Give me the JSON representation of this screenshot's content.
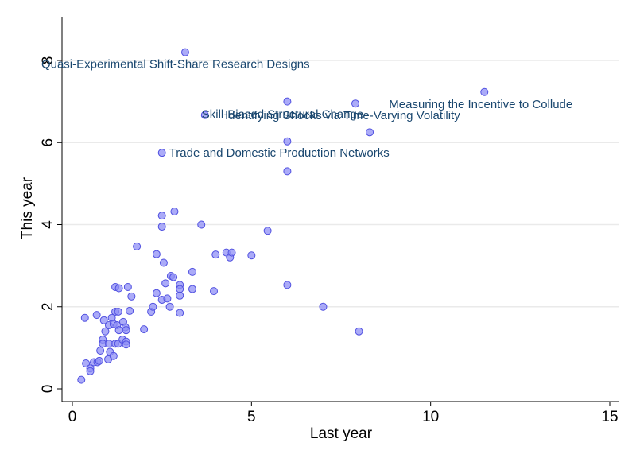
{
  "chart_data": {
    "type": "scatter",
    "xlabel": "Last year",
    "ylabel": "This year",
    "xlim": [
      0,
      15
    ],
    "ylim": [
      0,
      9
    ],
    "xticks": [
      0,
      5,
      10,
      15
    ],
    "yticks": [
      0,
      2,
      4,
      6,
      8
    ],
    "grid": true,
    "colors": {
      "point_fill": "#8f8ff5",
      "point_edge": "#5050e0",
      "annotation": "#1a476f"
    },
    "points": [
      {
        "x": 0.25,
        "y": 0.22
      },
      {
        "x": 0.35,
        "y": 1.73
      },
      {
        "x": 0.38,
        "y": 0.62
      },
      {
        "x": 0.5,
        "y": 0.5
      },
      {
        "x": 0.5,
        "y": 0.43
      },
      {
        "x": 0.6,
        "y": 0.65
      },
      {
        "x": 0.68,
        "y": 1.8
      },
      {
        "x": 0.7,
        "y": 0.65
      },
      {
        "x": 0.75,
        "y": 0.68
      },
      {
        "x": 0.78,
        "y": 0.93
      },
      {
        "x": 0.85,
        "y": 1.2
      },
      {
        "x": 0.85,
        "y": 1.1
      },
      {
        "x": 0.88,
        "y": 1.67
      },
      {
        "x": 0.92,
        "y": 1.4
      },
      {
        "x": 1.0,
        "y": 0.72
      },
      {
        "x": 1.02,
        "y": 1.1
      },
      {
        "x": 1.02,
        "y": 1.55
      },
      {
        "x": 1.05,
        "y": 0.9
      },
      {
        "x": 1.1,
        "y": 1.73
      },
      {
        "x": 1.15,
        "y": 1.58
      },
      {
        "x": 1.15,
        "y": 0.8
      },
      {
        "x": 1.2,
        "y": 1.1
      },
      {
        "x": 1.2,
        "y": 1.88
      },
      {
        "x": 1.2,
        "y": 2.48
      },
      {
        "x": 1.25,
        "y": 1.55
      },
      {
        "x": 1.28,
        "y": 1.88
      },
      {
        "x": 1.28,
        "y": 1.1
      },
      {
        "x": 1.3,
        "y": 2.45
      },
      {
        "x": 1.3,
        "y": 1.43
      },
      {
        "x": 1.4,
        "y": 1.2
      },
      {
        "x": 1.42,
        "y": 1.63
      },
      {
        "x": 1.48,
        "y": 1.5
      },
      {
        "x": 1.5,
        "y": 1.43
      },
      {
        "x": 1.5,
        "y": 1.15
      },
      {
        "x": 1.5,
        "y": 1.08
      },
      {
        "x": 1.55,
        "y": 2.48
      },
      {
        "x": 1.6,
        "y": 1.9
      },
      {
        "x": 1.65,
        "y": 2.25
      },
      {
        "x": 1.8,
        "y": 3.47
      },
      {
        "x": 2.0,
        "y": 1.45
      },
      {
        "x": 2.2,
        "y": 1.88
      },
      {
        "x": 2.25,
        "y": 2.0
      },
      {
        "x": 2.35,
        "y": 3.28
      },
      {
        "x": 2.35,
        "y": 2.33
      },
      {
        "x": 2.5,
        "y": 4.22
      },
      {
        "x": 2.5,
        "y": 3.95
      },
      {
        "x": 2.5,
        "y": 2.17
      },
      {
        "x": 2.55,
        "y": 3.07
      },
      {
        "x": 2.6,
        "y": 2.57
      },
      {
        "x": 2.65,
        "y": 2.2
      },
      {
        "x": 2.72,
        "y": 2.0
      },
      {
        "x": 2.75,
        "y": 2.75
      },
      {
        "x": 2.82,
        "y": 2.72
      },
      {
        "x": 2.85,
        "y": 4.32
      },
      {
        "x": 3.0,
        "y": 2.53
      },
      {
        "x": 3.0,
        "y": 2.43
      },
      {
        "x": 3.0,
        "y": 2.27
      },
      {
        "x": 3.0,
        "y": 1.85
      },
      {
        "x": 3.35,
        "y": 2.43
      },
      {
        "x": 3.35,
        "y": 2.85
      },
      {
        "x": 3.6,
        "y": 4.0
      },
      {
        "x": 3.95,
        "y": 2.38
      },
      {
        "x": 4.0,
        "y": 3.27
      },
      {
        "x": 4.3,
        "y": 3.32
      },
      {
        "x": 4.4,
        "y": 3.2
      },
      {
        "x": 4.45,
        "y": 3.32
      },
      {
        "x": 5.0,
        "y": 3.25
      },
      {
        "x": 5.45,
        "y": 3.85
      },
      {
        "x": 6.0,
        "y": 5.3
      },
      {
        "x": 6.0,
        "y": 6.03
      },
      {
        "x": 6.0,
        "y": 7.0
      },
      {
        "x": 6.0,
        "y": 2.53
      },
      {
        "x": 7.0,
        "y": 2.0
      },
      {
        "x": 8.0,
        "y": 1.4
      },
      {
        "x": 7.9,
        "y": 6.95
      },
      {
        "x": 8.3,
        "y": 6.25
      },
      {
        "x": 11.5,
        "y": 7.23
      },
      {
        "x": 3.15,
        "y": 8.2
      },
      {
        "x": 3.7,
        "y": 6.67
      },
      {
        "x": 2.5,
        "y": 5.75
      }
    ],
    "annotations": [
      {
        "text": "Quasi-Experimental Shift-Share Research Designs",
        "x": 3.15,
        "y": 8.2
      },
      {
        "text": "Measuring the Incentive to Collude",
        "x": 11.5,
        "y": 7.23
      },
      {
        "text": "Skill-Biased Structural Change",
        "x": 3.7,
        "y": 6.67
      },
      {
        "text": "Identifying Shocks via Time-Varying Volatility",
        "x": 7.9,
        "y": 6.95
      },
      {
        "text": "Trade and Domestic Production Networks",
        "x": 2.5,
        "y": 5.75
      }
    ]
  }
}
